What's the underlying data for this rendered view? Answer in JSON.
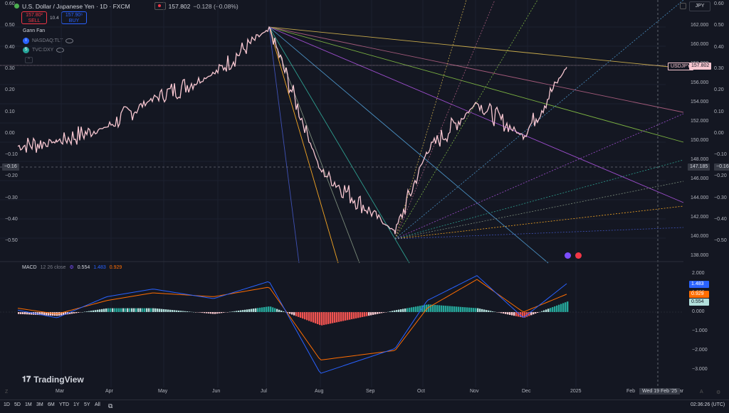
{
  "header": {
    "symbol_title": "U.S. Dollar / Japanese Yen · 1D · FXCM",
    "last_price": "157.802",
    "change": "−0.128 (−0.08%)",
    "currency_button": "JPY"
  },
  "trade": {
    "sell_price": "157.80²",
    "sell_label": "SELL",
    "spread": "10.4",
    "buy_price": "157.90⁶",
    "buy_label": "BUY"
  },
  "indicators": {
    "gann_fan": "Gann Fan",
    "overlay1_icon": "i",
    "overlay1": "NASDAQ:TLT",
    "overlay2_icon": "S",
    "overlay2": "TVC:DXY",
    "collapse": "^"
  },
  "left_axis": [
    "0.60",
    "0.50",
    "0.40",
    "0.30",
    "0.20",
    "0.10",
    "0.00",
    "−0.10",
    "−0.20",
    "−0.30",
    "−0.40",
    "−0.50"
  ],
  "right_axis_left_scale": [
    "0.60",
    "0.50",
    "0.40",
    "0.30",
    "0.20",
    "0.10",
    "0.00",
    "−0.10",
    "−0.20",
    "−0.30",
    "−0.40",
    "−0.50"
  ],
  "price_axis": [
    "162.000",
    "160.000",
    "158.000",
    "156.000",
    "154.000",
    "152.000",
    "150.000",
    "148.000",
    "146.000",
    "144.000",
    "142.000",
    "140.000",
    "138.000"
  ],
  "tags": {
    "symbol": "USDJPY",
    "price": "157.802",
    "crosshair_left": "−0.16",
    "crosshair_price": "147.185",
    "crosshair_right": "−0.16"
  },
  "macd": {
    "title": "MACD",
    "params": "12 26 close",
    "hist_value": "0.554",
    "macd_value": "1.483",
    "signal_value": "0.929",
    "axis": [
      "2.000",
      "1.000",
      "0.000",
      "−1.000",
      "−2.000",
      "−3.000"
    ],
    "colors": {
      "macd": "#2962ff",
      "signal": "#ff6d00",
      "hist_pos": "#26a69a",
      "hist_neg": "#ef5350"
    }
  },
  "time_axis": [
    "Mar",
    "Apr",
    "May",
    "Jun",
    "Jul",
    "Aug",
    "Sep",
    "Oct",
    "Nov",
    "Dec",
    "2025",
    "Feb",
    "Mar"
  ],
  "crosshair_date": "Wed 19 Feb '25",
  "ranges": [
    "1D",
    "5D",
    "1M",
    "3M",
    "6M",
    "YTD",
    "1Y",
    "5Y",
    "All"
  ],
  "clock": "02:36:26 (UTC)",
  "brand": "TradingView",
  "chart_data": {
    "type": "line",
    "series": [
      {
        "name": "USDJPY",
        "color": "#f8c7d1",
        "x": [
          "Feb",
          "Mar",
          "Apr",
          "May",
          "Jun",
          "Jul",
          "Aug",
          "Sep",
          "Oct",
          "Nov",
          "Dec",
          "2025"
        ],
        "values": [
          149.5,
          150.0,
          151.5,
          154.5,
          157.0,
          161.9,
          147.0,
          140.5,
          149.0,
          154.0,
          150.5,
          157.8
        ]
      }
    ],
    "ylim": [
      137,
      163
    ],
    "macd": {
      "x": [
        "Feb",
        "Mar",
        "Apr",
        "May",
        "Jun",
        "Jul",
        "Aug",
        "Sep",
        "Oct",
        "Nov",
        "Dec",
        "2025"
      ],
      "macd": [
        0.1,
        -0.3,
        0.8,
        1.2,
        0.7,
        1.6,
        -3.2,
        -1.9,
        0.6,
        1.9,
        -0.3,
        1.48
      ],
      "signal": [
        0.2,
        -0.1,
        0.6,
        1.0,
        0.8,
        1.3,
        -2.5,
        -2.0,
        0.2,
        1.7,
        0.0,
        0.93
      ],
      "ylim": [
        -3.5,
        2.2
      ]
    }
  }
}
